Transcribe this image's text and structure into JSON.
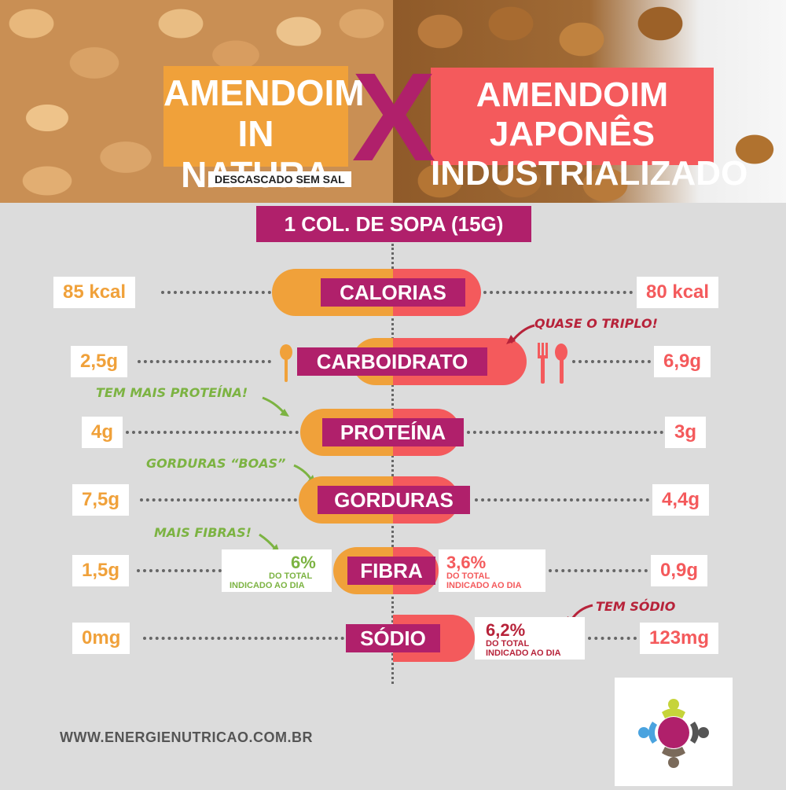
{
  "header": {
    "left_title_line1": "AMENDOIM",
    "left_title_line2": "IN NATURA",
    "left_subtitle": "DESCASCADO SEM SAL",
    "versus": "X",
    "right_title_line1": "AMENDOIM JAPONÊS",
    "right_title_line2": "INDUSTRIALIZADO"
  },
  "serving": "1 COL. DE SOPA (15G)",
  "rows": [
    {
      "label": "CALORIAS",
      "left": "85 kcal",
      "right": "80 kcal"
    },
    {
      "label": "CARBOIDRATO",
      "left": "2,5g",
      "right": "6,9g"
    },
    {
      "label": "PROTEÍNA",
      "left": "4g",
      "right": "3g"
    },
    {
      "label": "GORDURAS",
      "left": "7,5g",
      "right": "4,4g"
    },
    {
      "label": "FIBRA",
      "left": "1,5g",
      "right": "0,9g"
    },
    {
      "label": "SÓDIO",
      "left": "0mg",
      "right": "123mg"
    }
  ],
  "annotations": {
    "triplo": "QUASE O TRIPLO!",
    "proteina": "TEM MAIS PROTEÍNA!",
    "gorduras": "GORDURAS “BOAS”",
    "fibras": "MAIS FIBRAS!",
    "sodio": "TEM SÓDIO"
  },
  "percent": {
    "fibra_left_value": "6%",
    "fibra_left_text1": "DO TOTAL",
    "fibra_left_text2": "INDICADO AO DIA",
    "fibra_right_value": "3,6%",
    "fibra_right_text1": "DO TOTAL",
    "fibra_right_text2": "INDICADO AO DIA",
    "sodio_right_value": "6,2%",
    "sodio_right_text1": "DO TOTAL",
    "sodio_right_text2": "INDICADO AO DIA"
  },
  "footer": {
    "url": "WWW.ENERGIENUTRICAO.COM.BR"
  },
  "colors": {
    "left_accent": "#f0a13a",
    "right_accent": "#f45a5c",
    "label_bg": "#b0206b",
    "positive_note": "#7cb342",
    "warning_note": "#b7233a"
  },
  "icons": [
    "spoon-icon",
    "fork-icon",
    "logo-icon"
  ]
}
